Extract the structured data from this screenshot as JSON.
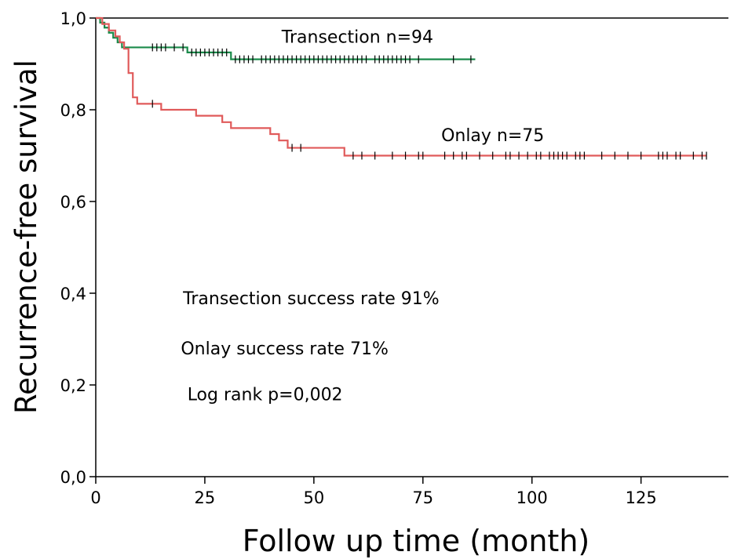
{
  "chart_data": {
    "type": "line",
    "subtype": "kaplan-meier",
    "title": "",
    "xlabel": "Follow up time (month)",
    "ylabel": "Recurrence-free survival",
    "xlim": [
      0,
      140
    ],
    "ylim": [
      0,
      1
    ],
    "x_ticks": [
      0,
      25,
      50,
      75,
      100,
      125
    ],
    "x_tick_labels": [
      "0",
      "25",
      "50",
      "75",
      "100",
      "125"
    ],
    "y_ticks": [
      0,
      0.2,
      0.4,
      0.6,
      0.8,
      1.0
    ],
    "y_tick_labels": [
      "0,0",
      "0,2",
      "0,4",
      "0,6",
      "0,8",
      "1,0"
    ],
    "grid": false,
    "legend": "none",
    "series": [
      {
        "name": "Transection n=94",
        "color": "#1a8a4a",
        "steps": [
          [
            0,
            1.0
          ],
          [
            1,
            0.99
          ],
          [
            2,
            0.979
          ],
          [
            3,
            0.968
          ],
          [
            4,
            0.957
          ],
          [
            5,
            0.947
          ],
          [
            6,
            0.936
          ],
          [
            21,
            0.925
          ],
          [
            31,
            0.91
          ],
          [
            87,
            0.91
          ]
        ],
        "censored": [
          13,
          14,
          15,
          16,
          18,
          20,
          22,
          23,
          24,
          25,
          26,
          27,
          28,
          29,
          30,
          32,
          33,
          34,
          35,
          36,
          38,
          39,
          40,
          41,
          42,
          43,
          44,
          45,
          46,
          47,
          48,
          49,
          50,
          51,
          52,
          53,
          54,
          55,
          56,
          57,
          58,
          59,
          60,
          61,
          62,
          64,
          65,
          66,
          67,
          68,
          69,
          70,
          71,
          72,
          74,
          82,
          86
        ]
      },
      {
        "name": "Onlay n=75",
        "color": "#e05a5a",
        "steps": [
          [
            0,
            1.0
          ],
          [
            1.5,
            0.987
          ],
          [
            3,
            0.973
          ],
          [
            4.5,
            0.96
          ],
          [
            5.5,
            0.947
          ],
          [
            6.5,
            0.933
          ],
          [
            7.5,
            0.88
          ],
          [
            8.5,
            0.827
          ],
          [
            9.5,
            0.813
          ],
          [
            15,
            0.8
          ],
          [
            23,
            0.787
          ],
          [
            29,
            0.773
          ],
          [
            31,
            0.76
          ],
          [
            40,
            0.747
          ],
          [
            42,
            0.733
          ],
          [
            44,
            0.717
          ],
          [
            57,
            0.7
          ],
          [
            140,
            0.7
          ]
        ],
        "censored": [
          13,
          45,
          47,
          59,
          61,
          64,
          68,
          71,
          74,
          75,
          80,
          82,
          84,
          85,
          88,
          91,
          94,
          95,
          97,
          99,
          101,
          102,
          104,
          105,
          106,
          107,
          108,
          110,
          111,
          112,
          116,
          119,
          122,
          125,
          129,
          130,
          131,
          133,
          134,
          137,
          139,
          140
        ]
      }
    ],
    "series_labels": [
      {
        "text": "Transection n=94",
        "x": 60,
        "y": 0.96
      },
      {
        "text": "Onlay n=75",
        "x": 91,
        "y": 0.745
      }
    ],
    "annotations": [
      {
        "text": "Transection success rate 91%",
        "x": 20,
        "y": 0.39
      },
      {
        "text": "Onlay success rate 71%",
        "x": 19.5,
        "y": 0.28
      },
      {
        "text": "Log rank p=0,002",
        "x": 21,
        "y": 0.18
      }
    ]
  }
}
